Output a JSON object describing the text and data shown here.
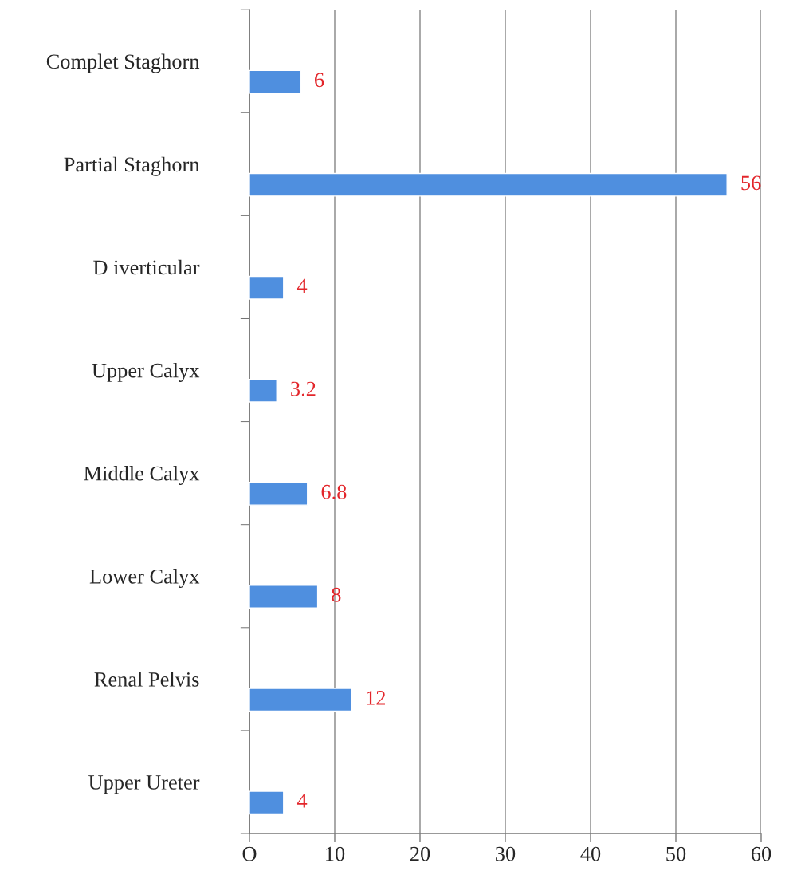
{
  "chart_data": {
    "type": "bar",
    "orientation": "horizontal",
    "categories": [
      "Complet Staghorn",
      "Partial Staghorn",
      "D iverticular",
      "Upper Calyx",
      "Middle Calyx",
      "Lower Calyx",
      "Renal Pelvis",
      "Upper Ureter"
    ],
    "values": [
      6,
      56,
      4,
      3.2,
      6.8,
      8,
      12,
      4
    ],
    "color": "#4f8fdf",
    "data_labels": true,
    "xlim": [
      0,
      60
    ],
    "xticks": [
      {
        "value": 0,
        "label": "O"
      },
      10,
      20,
      30,
      40,
      50,
      60
    ],
    "grid": "x",
    "legend": false
  }
}
